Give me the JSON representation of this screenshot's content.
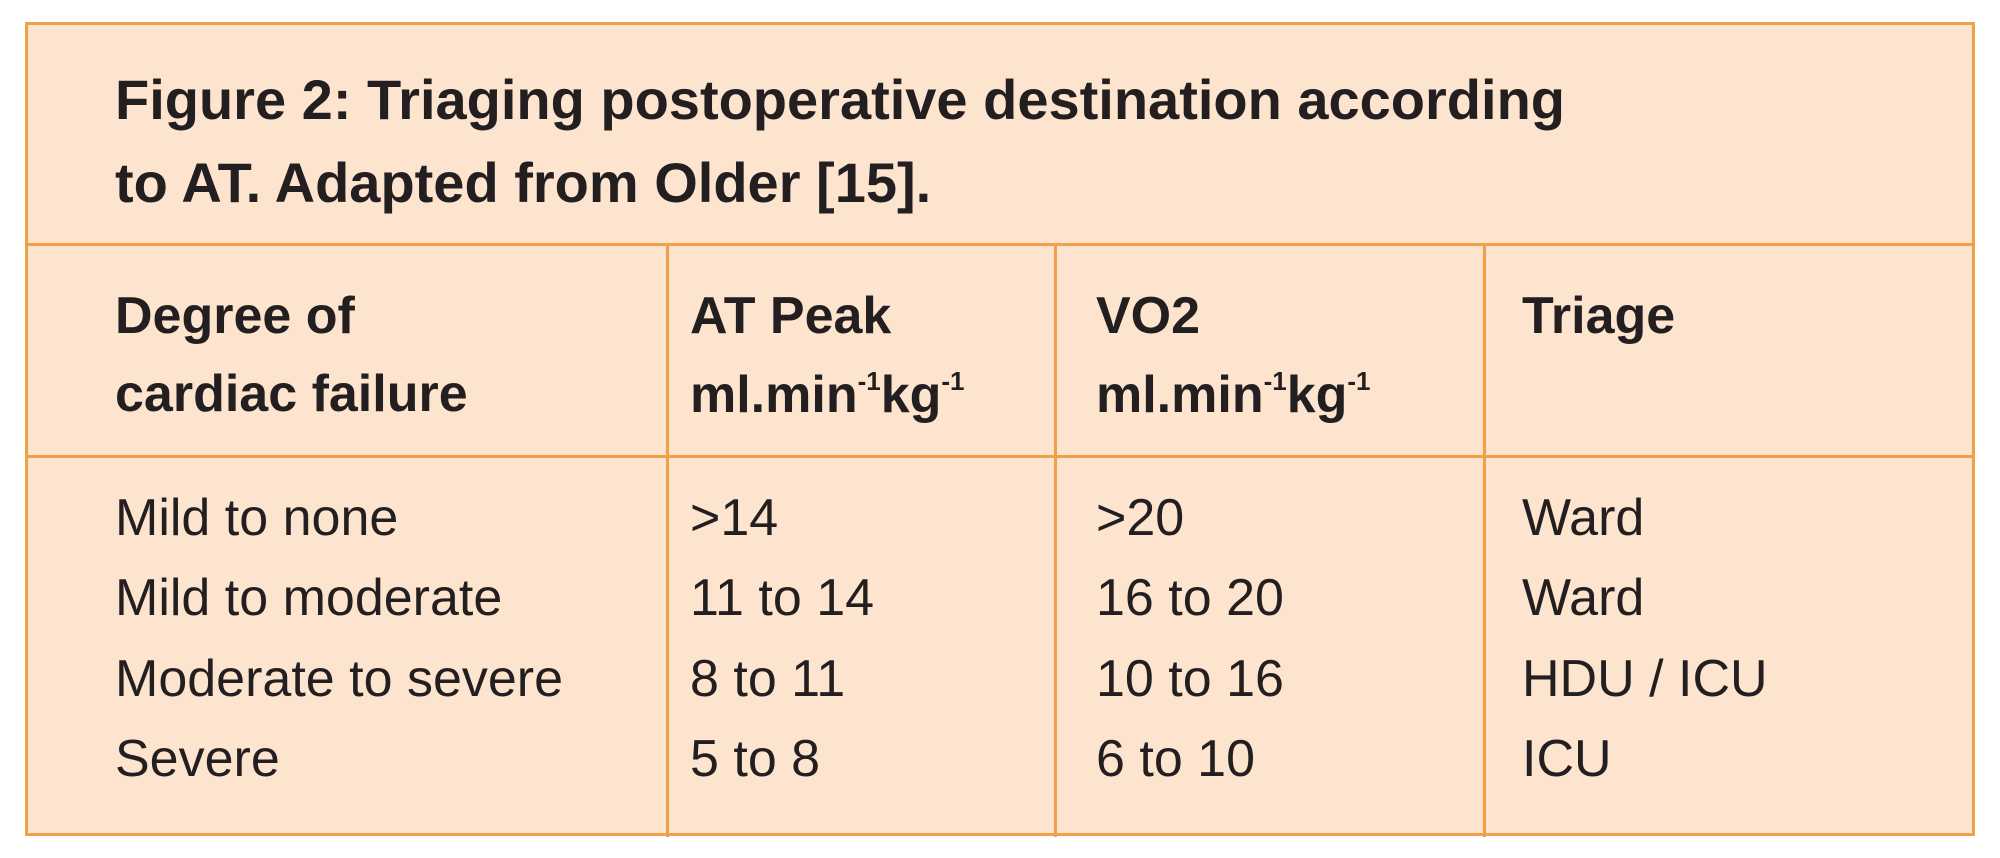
{
  "title": {
    "line1": "Figure 2: Triaging postoperative destination according",
    "line2": "to AT. Adapted from Older [15]."
  },
  "table": {
    "header": [
      {
        "line1": "Degree of",
        "line2": "cardiac failure"
      },
      {
        "line1": "AT Peak",
        "unit": {
          "base1": "ml.min",
          "exp1": "-1",
          "base2": "kg",
          "exp2": "-1"
        }
      },
      {
        "line1": "VO2",
        "unit": {
          "base1": "ml.min",
          "exp1": "-1",
          "base2": "kg",
          "exp2": "-1"
        }
      },
      {
        "line1": "Triage"
      }
    ],
    "rows": [
      [
        "Mild to none",
        ">14",
        ">20",
        "Ward"
      ],
      [
        "Mild to moderate",
        "11 to 14",
        "16 to 20",
        "Ward"
      ],
      [
        "Moderate to severe",
        "8 to 11",
        "10 to 16",
        "HDU / ICU"
      ],
      [
        "Severe",
        "5 to 8",
        "6 to 10",
        "ICU"
      ]
    ]
  }
}
